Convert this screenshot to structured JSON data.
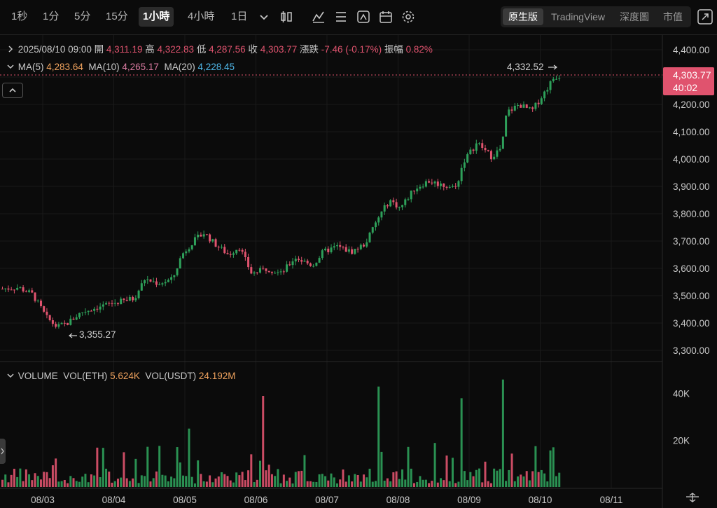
{
  "toolbar": {
    "intervals": [
      "1秒",
      "1分",
      "5分",
      "15分",
      "1小時",
      "4小時",
      "1日"
    ],
    "active_interval": "1小時",
    "views": [
      "原生版",
      "TradingView",
      "深度圖",
      "市值"
    ],
    "active_view": "原生版"
  },
  "ohlc": {
    "date": "2025/08/10 09:00",
    "open_label": "開",
    "open": "4,311.19",
    "high_label": "高",
    "high": "4,322.83",
    "low_label": "低",
    "low": "4,287.56",
    "close_label": "收",
    "close": "4,303.77",
    "change_label": "漲跌",
    "change": "-7.46 (-0.17%)",
    "amplitude_label": "振幅",
    "amplitude": "0.82%"
  },
  "ma": {
    "ma5_label": "MA(5)",
    "ma5": "4,283.64",
    "ma10_label": "MA(10)",
    "ma10": "4,265.17",
    "ma20_label": "MA(20)",
    "ma20": "4,228.45"
  },
  "price_axis": [
    "4,400.00",
    "4,300.00",
    "4,200.00",
    "4,100.00",
    "4,000.00",
    "3,900.00",
    "3,800.00",
    "3,700.00",
    "3,600.00",
    "3,500.00",
    "3,400.00",
    "3,300.00"
  ],
  "current_price": "4,303.77",
  "countdown": "40:02",
  "high_marker": "4,332.52",
  "low_marker": "3,355.27",
  "volume": {
    "title": "VOLUME",
    "eth_label": "VOL(ETH)",
    "eth": "5.624K",
    "usdt_label": "VOL(USDT)",
    "usdt": "24.192M",
    "axis": [
      "40K",
      "20K"
    ]
  },
  "date_axis": [
    "08/03",
    "08/04",
    "08/05",
    "08/06",
    "08/07",
    "08/08",
    "08/09",
    "08/10",
    "08/11"
  ],
  "colors": {
    "up": "#2ea05a",
    "down": "#e0536e",
    "background": "#0b0b0b",
    "grid": "#1c1c1c"
  },
  "chart_data": {
    "type": "candlestick",
    "y_range": [
      3300,
      4400
    ],
    "volume_range": [
      0,
      48000
    ],
    "key_points": [
      {
        "date": "08/03",
        "approx_price": 3520
      },
      {
        "date": "08/03",
        "approx_price": 3355.27,
        "note": "low"
      },
      {
        "date": "08/04",
        "approx_price": 3460
      },
      {
        "date": "08/05",
        "approx_price": 3730
      },
      {
        "date": "08/06",
        "approx_price": 3580
      },
      {
        "date": "08/07",
        "approx_price": 3650
      },
      {
        "date": "08/08",
        "approx_price": 3850
      },
      {
        "date": "08/09",
        "approx_price": 4020
      },
      {
        "date": "08/10",
        "approx_price": 4332.52,
        "note": "high"
      },
      {
        "date": "08/10",
        "approx_price": 4303.77,
        "note": "current"
      }
    ]
  }
}
